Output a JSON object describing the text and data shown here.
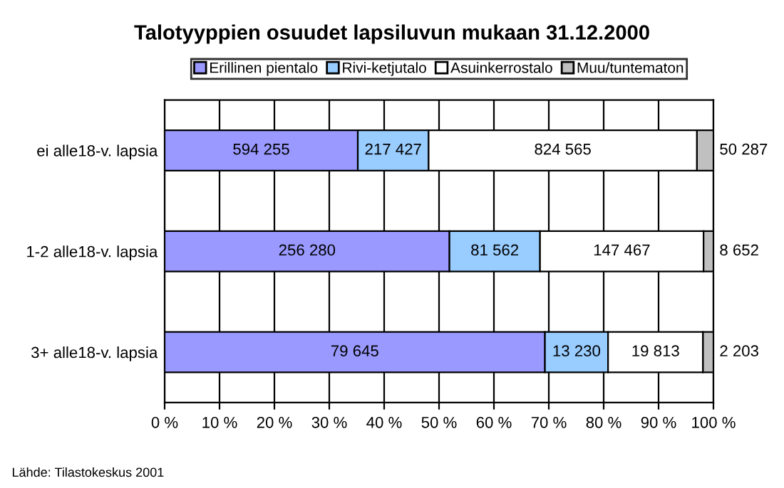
{
  "chart_data": {
    "type": "bar",
    "orientation": "horizontal",
    "stacked": true,
    "title": "Talotyyppien osuudet lapsiluvun mukaan 31.12.2000",
    "categories": [
      "ei alle18-v. lapsia",
      "1-2 alle18-v. lapsia",
      "3+ alle18-v. lapsia"
    ],
    "series": [
      {
        "name": "Erillinen pientalo",
        "color": "#9999ff",
        "values": [
          35.2,
          51.9,
          69.3
        ]
      },
      {
        "name": "Rivi-ketjutalo",
        "color": "#99ccff",
        "values": [
          12.9,
          16.5,
          11.5
        ]
      },
      {
        "name": "Asuinkerrostalo",
        "color": "#ffffff",
        "values": [
          48.9,
          29.8,
          17.3
        ]
      },
      {
        "name": "Muu/tuntematon",
        "color": "#c0c0c0",
        "values": [
          3.0,
          1.8,
          1.9
        ]
      }
    ],
    "xlim": [
      0,
      100
    ],
    "xticks": [
      {
        "value": 0,
        "label": "0 %"
      },
      {
        "value": 10,
        "label": "10 %"
      },
      {
        "value": 20,
        "label": "20 %"
      },
      {
        "value": 30,
        "label": "30 %"
      },
      {
        "value": 40,
        "label": "40 %"
      },
      {
        "value": 50,
        "label": "50 %"
      },
      {
        "value": 60,
        "label": "60 %"
      },
      {
        "value": 70,
        "label": "70 %"
      },
      {
        "value": 80,
        "label": "80 %"
      },
      {
        "value": 90,
        "label": "90 %"
      },
      {
        "value": 100,
        "label": "100 %"
      }
    ],
    "grid": "x",
    "legend": "top",
    "annotations": [
      "594 255",
      "217 427",
      "824 565",
      "50 287",
      "256 280",
      "81 562",
      "147 467",
      "8 652",
      "79 645",
      "13 230",
      "19 813",
      "2 203",
      "Lähde: Tilastokeskus 2001"
    ]
  }
}
